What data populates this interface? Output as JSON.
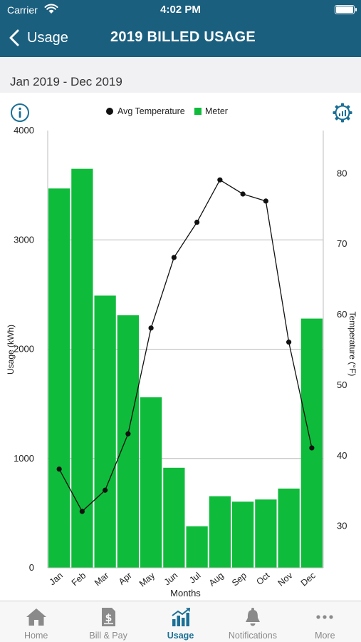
{
  "status_bar": {
    "carrier": "Carrier",
    "time": "4:02 PM"
  },
  "nav": {
    "back_label": "Usage",
    "title": "2019 BILLED USAGE"
  },
  "date_range": "Jan 2019 - Dec 2019",
  "icons": {
    "info": "info-icon",
    "settings": "gear-icon",
    "back": "chevron-left-icon"
  },
  "colors": {
    "header": "#1b5f7f",
    "bar": "#0fbb3b",
    "line": "#111111",
    "active_tab": "#1b6f96"
  },
  "chart_data": {
    "type": "bar",
    "categories": [
      "Jan",
      "Feb",
      "Mar",
      "Apr",
      "May",
      "Jun",
      "Jul",
      "Aug",
      "Sep",
      "Oct",
      "Nov",
      "Dec"
    ],
    "series": [
      {
        "name": "Meter",
        "type": "bar",
        "axis": "left",
        "values": [
          3470,
          3650,
          2490,
          2310,
          1560,
          915,
          380,
          655,
          605,
          625,
          725,
          2280
        ]
      },
      {
        "name": "Avg Temperature",
        "type": "line",
        "axis": "right",
        "values": [
          38,
          32,
          35,
          43,
          58,
          68,
          73,
          79,
          77,
          76,
          56,
          41
        ]
      }
    ],
    "xlabel": "Months",
    "ylabel": "Usage (kWh)",
    "y2label": "Temperature (°F)",
    "ylim": [
      0,
      4000
    ],
    "yticks": [
      0,
      1000,
      2000,
      3000,
      4000
    ],
    "y2lim": [
      24,
      86
    ],
    "y2ticks": [
      30,
      40,
      50,
      60,
      70,
      80
    ],
    "legend_position": "top",
    "grid": true
  },
  "tabs": [
    {
      "label": "Home",
      "icon": "home-icon",
      "active": false
    },
    {
      "label": "Bill & Pay",
      "icon": "bill-icon",
      "active": false
    },
    {
      "label": "Usage",
      "icon": "usage-chart-icon",
      "active": true
    },
    {
      "label": "Notifications",
      "icon": "bell-icon",
      "active": false
    },
    {
      "label": "More",
      "icon": "more-icon",
      "active": false
    }
  ]
}
